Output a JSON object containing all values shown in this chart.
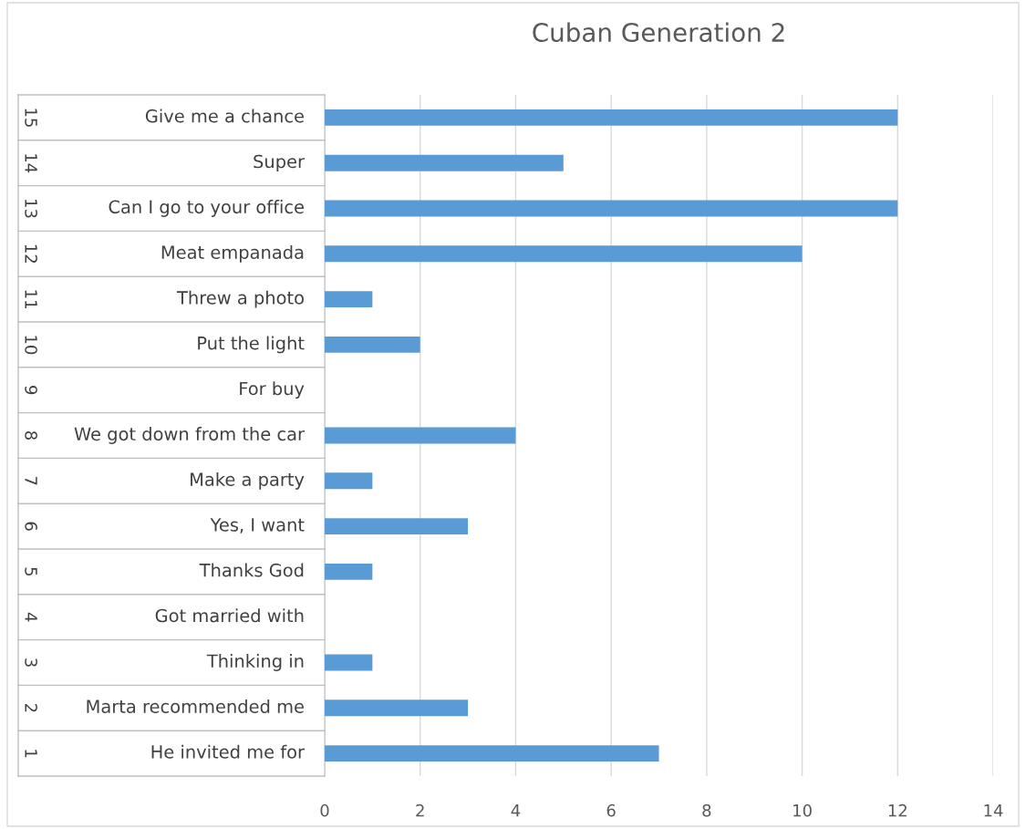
{
  "chart_data": {
    "type": "bar",
    "orientation": "horizontal",
    "title": "Cuban Generation 2",
    "categories": [
      "Give me a chance",
      "Super",
      "Can I go to your office",
      "Meat empanada",
      "Threw a photo",
      "Put the light",
      "For buy",
      "We got down from the car",
      "Make a party",
      "Yes, I want",
      "Thanks God",
      "Got married with",
      "Thinking in",
      "Marta recommended me",
      "He invited me for"
    ],
    "y2_categories": [
      "15",
      "14",
      "13",
      "12",
      "11",
      "10",
      "9",
      "8",
      "7",
      "6",
      "5",
      "4",
      "3",
      "2",
      "1"
    ],
    "values": [
      12,
      5,
      12,
      10,
      1,
      2,
      0,
      4,
      1,
      3,
      1,
      0,
      1,
      3,
      7
    ],
    "color": "#5b9bd5",
    "xlim": [
      0,
      14
    ],
    "xticks": [
      0,
      2,
      4,
      6,
      8,
      10,
      12,
      14
    ],
    "grid": "x"
  }
}
